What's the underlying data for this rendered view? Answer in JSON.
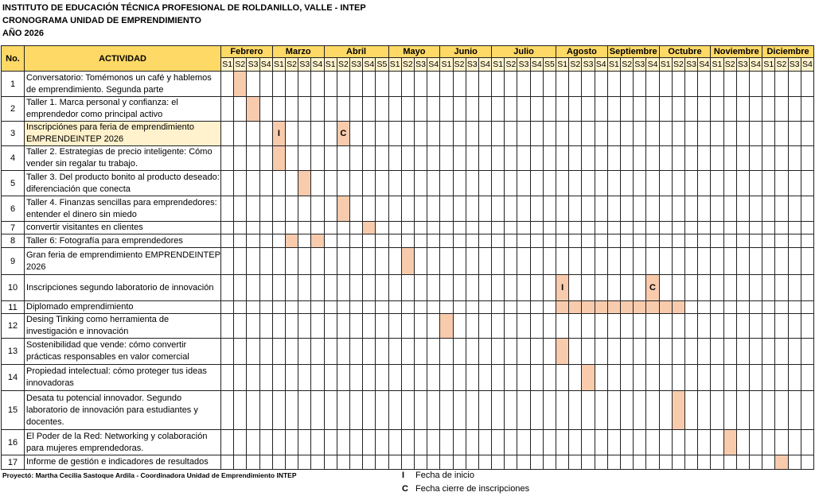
{
  "titles": {
    "line1": "INSTITUTO DE EDUCACIÓN TÉCNICA PROFESIONAL DE ROLDANILLO, VALLE - INTEP",
    "line2": "CRONOGRAMA UNIDAD DE EMPRENDIMIENTO",
    "line3": "AÑO 2026"
  },
  "table": {
    "col_no": "No.",
    "col_activity": "ACTIVIDAD",
    "months": [
      {
        "name": "Febrero",
        "weeks": [
          "S1",
          "S2",
          "S3",
          "S4"
        ]
      },
      {
        "name": "Marzo",
        "weeks": [
          "S1",
          "S2",
          "S3",
          "S4"
        ]
      },
      {
        "name": "Abril",
        "weeks": [
          "S1",
          "S2",
          "S3",
          "S4",
          "S5"
        ]
      },
      {
        "name": "Mayo",
        "weeks": [
          "S1",
          "S2",
          "S3",
          "S4"
        ]
      },
      {
        "name": "Junio",
        "weeks": [
          "S1",
          "S2",
          "S3",
          "S4"
        ]
      },
      {
        "name": "Julio",
        "weeks": [
          "S1",
          "S2",
          "S3",
          "S4",
          "S5"
        ]
      },
      {
        "name": "Agosto",
        "weeks": [
          "S1",
          "S2",
          "S3",
          "S4"
        ]
      },
      {
        "name": "Septiembre",
        "weeks": [
          "S1",
          "S2",
          "S3",
          "S4"
        ]
      },
      {
        "name": "Octubre",
        "weeks": [
          "S1",
          "S2",
          "S3",
          "S4"
        ]
      },
      {
        "name": "Noviembre",
        "weeks": [
          "S1",
          "S2",
          "S3",
          "S4"
        ]
      },
      {
        "name": "Diciembre",
        "weeks": [
          "S1",
          "S2",
          "S3",
          "S4"
        ]
      }
    ],
    "rows": [
      {
        "no": "1",
        "activity": "Conversatorio: Tomémonos un café y hablemos de emprendimiento. Segunda parte",
        "marks": [
          {
            "month": "Febrero",
            "week": "S2",
            "label": ""
          }
        ]
      },
      {
        "no": "2",
        "activity": "Taller 1. Marca personal y confianza: el emprendedor como principal activo",
        "marks": [
          {
            "month": "Febrero",
            "week": "S3",
            "label": ""
          }
        ]
      },
      {
        "no": "3",
        "activity": "Inscripciónes para feria de emprendimiento EMPRENDEINTEP 2026",
        "highlight": true,
        "marks": [
          {
            "month": "Marzo",
            "week": "S1",
            "label": "I"
          },
          {
            "month": "Abril",
            "week": "S2",
            "label": "C"
          }
        ]
      },
      {
        "no": "4",
        "activity": "Taller 2. Estrategias de precio inteligente: Cómo vender sin regalar tu trabajo.",
        "marks": [
          {
            "month": "Marzo",
            "week": "S1",
            "label": ""
          }
        ]
      },
      {
        "no": "5",
        "activity": "Taller 3. Del producto bonito al producto deseado: diferenciación que conecta",
        "marks": [
          {
            "month": "Marzo",
            "week": "S3",
            "label": ""
          }
        ]
      },
      {
        "no": "6",
        "activity": "Taller 4. Finanzas sencillas para emprendedores: entender el dinero sin miedo",
        "marks": [
          {
            "month": "Abril",
            "week": "S2",
            "label": ""
          }
        ]
      },
      {
        "no": "7",
        "activity": "convertir visitantes en clientes",
        "marks": [
          {
            "month": "Abril",
            "week": "S4",
            "label": ""
          }
        ]
      },
      {
        "no": "8",
        "activity": "Taller 6: Fotografía para emprendedores",
        "marks": [
          {
            "month": "Marzo",
            "week": "S2",
            "label": ""
          },
          {
            "month": "Marzo",
            "week": "S4",
            "label": ""
          }
        ]
      },
      {
        "no": "9",
        "activity": "Gran feria de emprendimiento EMPRENDEINTEP 2026",
        "marks": [
          {
            "month": "Mayo",
            "week": "S2",
            "label": ""
          }
        ]
      },
      {
        "no": "10",
        "activity": "Inscripciones segundo laboratorio de innovación",
        "marks": [
          {
            "month": "Agosto",
            "week": "S1",
            "label": "I"
          },
          {
            "month": "Septiembre",
            "week": "S4",
            "label": "C"
          }
        ]
      },
      {
        "no": "11",
        "activity": "Diplomado emprendimiento",
        "marks": [
          {
            "month": "Agosto",
            "week": "S1",
            "label": ""
          },
          {
            "month": "Agosto",
            "week": "S2",
            "label": ""
          },
          {
            "month": "Agosto",
            "week": "S3",
            "label": ""
          },
          {
            "month": "Agosto",
            "week": "S4",
            "label": ""
          },
          {
            "month": "Septiembre",
            "week": "S1",
            "label": ""
          },
          {
            "month": "Septiembre",
            "week": "S2",
            "label": ""
          },
          {
            "month": "Septiembre",
            "week": "S3",
            "label": ""
          },
          {
            "month": "Septiembre",
            "week": "S4",
            "label": ""
          },
          {
            "month": "Octubre",
            "week": "S1",
            "label": ""
          },
          {
            "month": "Octubre",
            "week": "S2",
            "label": ""
          }
        ]
      },
      {
        "no": "12",
        "activity": "Desing Tinking como herramienta de investigación e innovación",
        "marks": [
          {
            "month": "Junio",
            "week": "S1",
            "label": ""
          }
        ]
      },
      {
        "no": "13",
        "activity": "Sostenibilidad que vende: cómo convertir prácticas responsables en valor comercial",
        "marks": [
          {
            "month": "Agosto",
            "week": "S1",
            "label": ""
          }
        ]
      },
      {
        "no": "14",
        "activity": "Propiedad intelectual: cómo proteger tus ideas innovadoras",
        "marks": [
          {
            "month": "Agosto",
            "week": "S3",
            "label": ""
          }
        ]
      },
      {
        "no": "15",
        "activity": "Desata tu potencial innovador. Segundo laboratorio de innovación para estudiantes y docentes.",
        "marks": [
          {
            "month": "Octubre",
            "week": "S2",
            "label": ""
          }
        ]
      },
      {
        "no": "16",
        "activity": "El Poder de la Red: Networking y colaboración para mujeres emprendedoras.",
        "marks": [
          {
            "month": "Noviembre",
            "week": "S2",
            "label": ""
          }
        ]
      },
      {
        "no": "17",
        "activity": "Informe de gestión e indicadores de resultados",
        "marks": [
          {
            "month": "Diciembre",
            "week": "S2",
            "label": ""
          }
        ]
      }
    ]
  },
  "footer": "Proyectó: Martha Cecilia Sastoque Ardila - Coordinadora Unidad de Emprendimiento INTEP",
  "legend": [
    {
      "key": "I",
      "text": "Fecha de inicio"
    },
    {
      "key": "C",
      "text": "Fecha cierre de inscripciones"
    }
  ],
  "colors": {
    "header": "#FFD966",
    "subheader": "#FFF2CC",
    "mark": "#F8CBAD",
    "highlight": "#FFF2CC"
  }
}
